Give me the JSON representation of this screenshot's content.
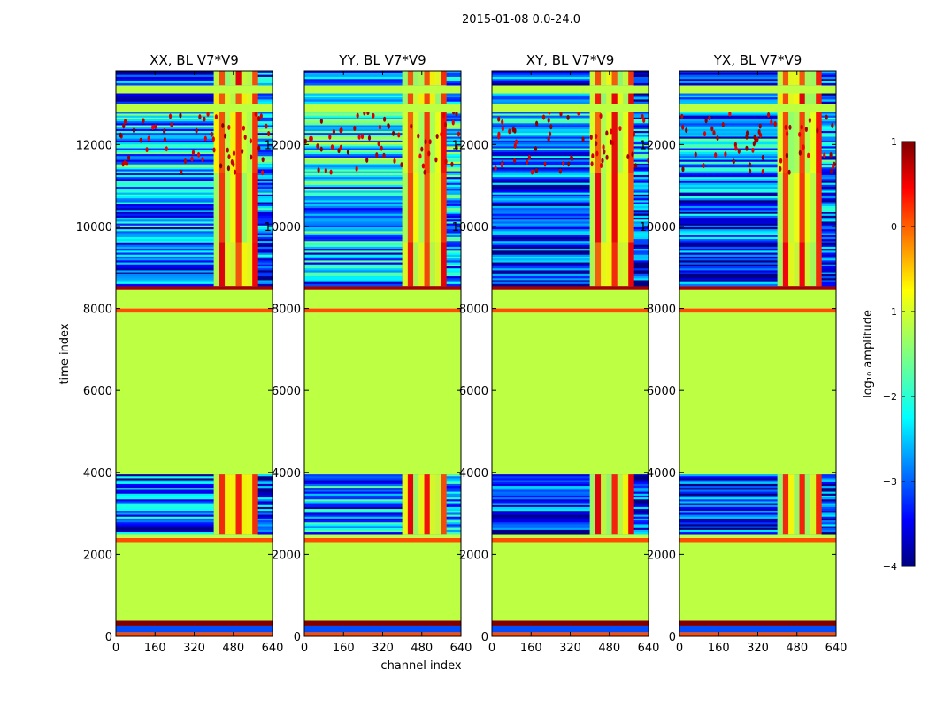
{
  "suptitle": "2015-01-08 0.0-24.0",
  "chart_data": {
    "type": "heatmap",
    "title": "2015-01-08 0.0-24.0",
    "xlabel": "channel index",
    "ylabel": "time index",
    "xlim": [
      0,
      640
    ],
    "ylim": [
      0,
      13800
    ],
    "x_ticks": [
      "0",
      "160",
      "320",
      "480",
      "640"
    ],
    "y_ticks": [
      "0",
      "2000",
      "4000",
      "6000",
      "8000",
      "10000",
      "12000"
    ],
    "x_tick_values": [
      0,
      160,
      320,
      480,
      640
    ],
    "y_tick_values": [
      0,
      2000,
      4000,
      6000,
      8000,
      10000,
      12000
    ],
    "colorbar": {
      "label": "log₁₀ amplitude",
      "range": [
        -4,
        1
      ],
      "ticks": [
        "1",
        "0",
        "−1",
        "−2",
        "−3",
        "−4"
      ],
      "tick_values": [
        1,
        0,
        -1,
        -2,
        -3,
        -4
      ],
      "colormap": "jet"
    },
    "panels": [
      {
        "title": "XX, BL V7*V9",
        "flag_channel_range": [
          400,
          580
        ],
        "noise_level": -3.0
      },
      {
        "title": "YY, BL V7*V9",
        "flag_channel_range": [
          400,
          580
        ],
        "noise_level": -2.7
      },
      {
        "title": "XY, BL V7*V9",
        "flag_channel_range": [
          400,
          580
        ],
        "noise_level": -3.3
      },
      {
        "title": "YX, BL V7*V9",
        "flag_channel_range": [
          400,
          580
        ],
        "noise_level": -3.2
      }
    ],
    "time_bands": [
      {
        "from": 0,
        "to": 100,
        "level": 0.0
      },
      {
        "from": 100,
        "to": 260,
        "level": -3.0
      },
      {
        "from": 260,
        "to": 380,
        "level": 1.0
      },
      {
        "from": 380,
        "to": 2300,
        "level": -1.2
      },
      {
        "from": 2300,
        "to": 2400,
        "level": 0.0
      },
      {
        "from": 2400,
        "to": 2500,
        "level": -1.2
      },
      {
        "from": 2500,
        "to": 3950,
        "level": -3.0,
        "textured": true
      },
      {
        "from": 3950,
        "to": 7900,
        "level": -1.2
      },
      {
        "from": 7900,
        "to": 8000,
        "level": 0.0
      },
      {
        "from": 8000,
        "to": 8450,
        "level": -1.2
      },
      {
        "from": 8450,
        "to": 8550,
        "level": 0.8
      },
      {
        "from": 8550,
        "to": 9600,
        "level": -3.0,
        "textured": true
      },
      {
        "from": 9600,
        "to": 11300,
        "level": -2.5,
        "textured": true
      },
      {
        "from": 11300,
        "to": 12800,
        "level": -1.8,
        "textured": true
      },
      {
        "from": 12800,
        "to": 13000,
        "level": -1.2
      },
      {
        "from": 13000,
        "to": 13250,
        "level": -2.8,
        "textured": true
      },
      {
        "from": 13250,
        "to": 13450,
        "level": -1.2
      },
      {
        "from": 13450,
        "to": 13800,
        "level": -2.9,
        "textured": true
      }
    ]
  }
}
